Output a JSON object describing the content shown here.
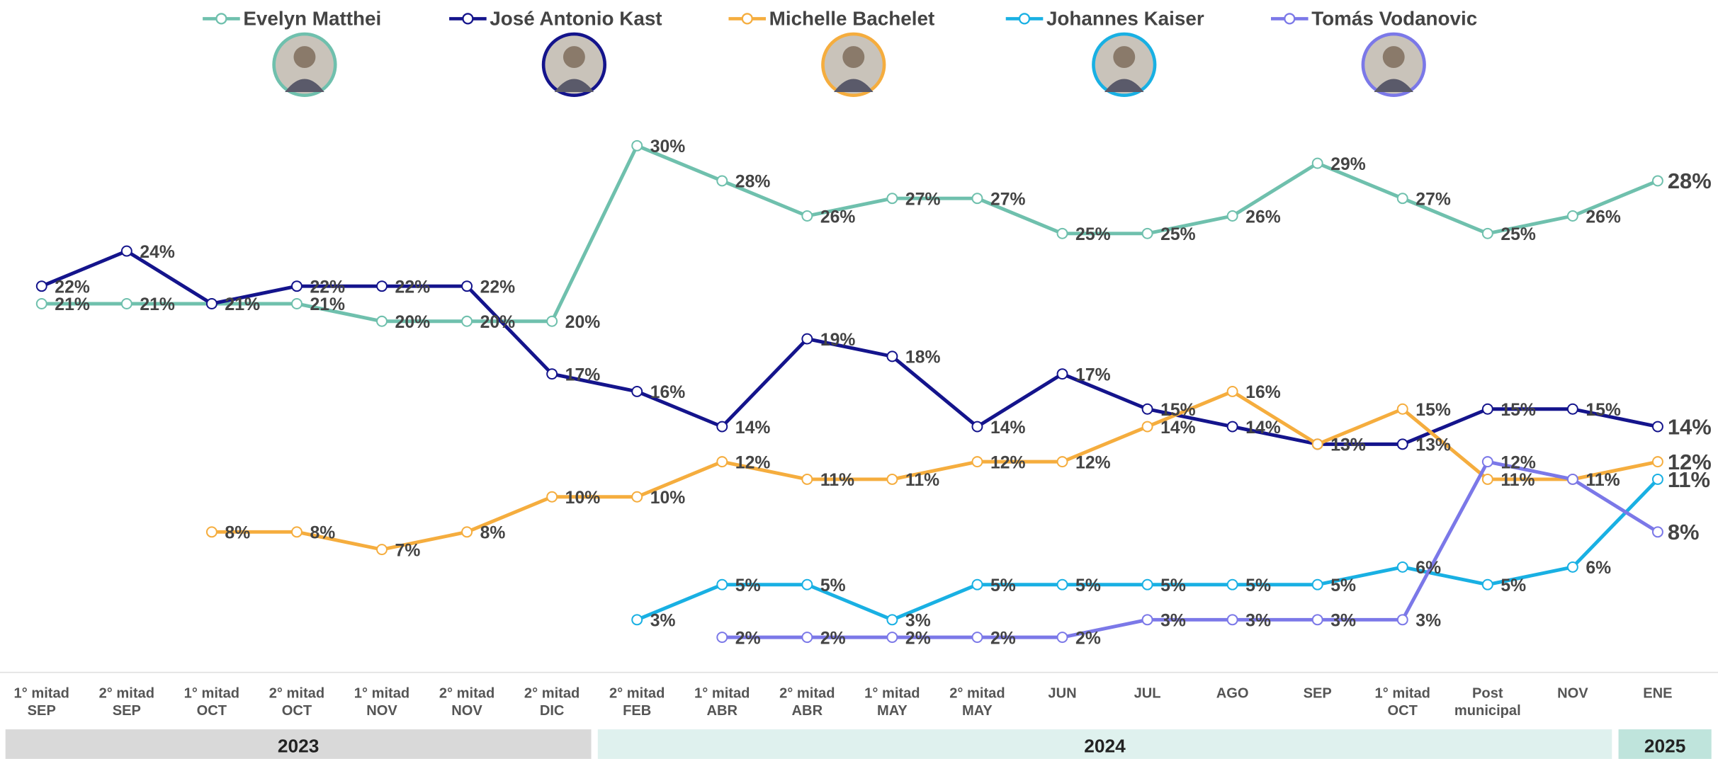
{
  "chart_data": {
    "type": "line",
    "categories": [
      [
        "1° mitad",
        "SEP"
      ],
      [
        "2° mitad",
        "SEP"
      ],
      [
        "1° mitad",
        "OCT"
      ],
      [
        "2° mitad",
        "OCT"
      ],
      [
        "1° mitad",
        "NOV"
      ],
      [
        "2° mitad",
        "NOV"
      ],
      [
        "2° mitad",
        "DIC"
      ],
      [
        "2° mitad",
        "FEB"
      ],
      [
        "1° mitad",
        "ABR"
      ],
      [
        "2° mitad",
        "ABR"
      ],
      [
        "1° mitad",
        "MAY"
      ],
      [
        "2° mitad",
        "MAY"
      ],
      [
        "JUN"
      ],
      [
        "JUL"
      ],
      [
        "AGO"
      ],
      [
        "SEP"
      ],
      [
        "1° mitad",
        "OCT"
      ],
      [
        "Post",
        "municipal"
      ],
      [
        "NOV"
      ],
      [
        "ENE"
      ]
    ],
    "years": [
      {
        "label": "2023",
        "color": "#d9d9d9",
        "from": 0,
        "to": 6
      },
      {
        "label": "2024",
        "color": "#dff1ee",
        "from": 7,
        "to": 18
      },
      {
        "label": "2025",
        "color": "#bfe4dc",
        "from": 19,
        "to": 19
      }
    ],
    "ylim": [
      0,
      30
    ],
    "series": [
      {
        "name": "Evelyn Matthei",
        "color": "#6fc0ad",
        "values": [
          21,
          21,
          21,
          21,
          20,
          20,
          20,
          30,
          28,
          26,
          27,
          27,
          25,
          25,
          26,
          29,
          27,
          25,
          26,
          28
        ],
        "value_labels": [
          "21%",
          "21%",
          "21%",
          "21%",
          "20%",
          "20%",
          "20%",
          "30%",
          "28%",
          "26%",
          "27%",
          "27%",
          "25%",
          "25%",
          "26%",
          "29%",
          "27%",
          "25%",
          "26%",
          "28%"
        ]
      },
      {
        "name": "José Antonio Kast",
        "color": "#14148c",
        "values": [
          22,
          24,
          21,
          22,
          22,
          22,
          17,
          16,
          14,
          19,
          18,
          14,
          17,
          15,
          14,
          13,
          13,
          15,
          15,
          14
        ],
        "value_labels": [
          "22%",
          "24%",
          "21%",
          "22%",
          "22%",
          "22%",
          "17%",
          "16%",
          "14%",
          "19%",
          "18%",
          "14%",
          "17%",
          "15%",
          "14%",
          "13%",
          "13%",
          "15%",
          "15%",
          "14%"
        ]
      },
      {
        "name": "Michelle Bachelet",
        "color": "#f5ad3e",
        "values": [
          null,
          null,
          8,
          8,
          7,
          8,
          10,
          10,
          12,
          11,
          11,
          12,
          12,
          14,
          16,
          13,
          15,
          11,
          11,
          12
        ],
        "value_labels": [
          null,
          null,
          "8%",
          "8%",
          "7%",
          "8%",
          "10%",
          "10%",
          "12%",
          "11%",
          "11%",
          "12%",
          "12%",
          "14%",
          "16%",
          "13%",
          "15%",
          "11%",
          "11%",
          "12%"
        ]
      },
      {
        "name": "Johannes Kaiser",
        "color": "#19b0e3",
        "values": [
          null,
          null,
          null,
          null,
          null,
          null,
          null,
          3,
          5,
          5,
          3,
          5,
          5,
          5,
          5,
          5,
          6,
          5,
          6,
          11
        ],
        "value_labels": [
          null,
          null,
          null,
          null,
          null,
          null,
          null,
          "3%",
          "5%",
          "5%",
          "3%",
          "5%",
          "5%",
          "5%",
          "5%",
          "5%",
          "6%",
          "5%",
          "6%",
          "11%"
        ]
      },
      {
        "name": "Tomás Vodanovic",
        "color": "#7b78e8",
        "values": [
          null,
          null,
          null,
          null,
          null,
          null,
          null,
          null,
          2,
          2,
          2,
          2,
          2,
          3,
          3,
          3,
          3,
          12,
          11,
          8
        ],
        "value_labels": [
          null,
          null,
          null,
          null,
          null,
          null,
          null,
          null,
          "2%",
          "2%",
          "2%",
          "2%",
          "2%",
          "3%",
          "3%",
          "3%",
          "3%",
          "12%",
          "11%",
          "8%"
        ]
      }
    ]
  }
}
